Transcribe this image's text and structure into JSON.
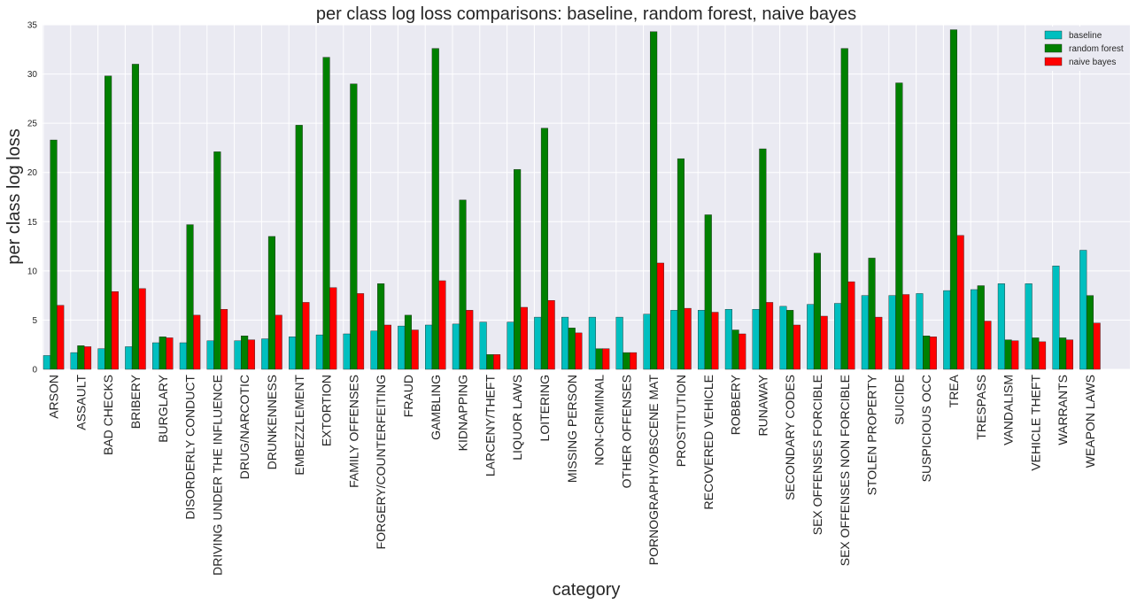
{
  "chart_data": {
    "type": "bar",
    "title": "per class log loss comparisons: baseline, random forest, naive bayes",
    "xlabel": "category",
    "ylabel": "per class log loss",
    "ylim": [
      0,
      35
    ],
    "yticks": [
      0,
      5,
      10,
      15,
      20,
      25,
      30,
      35
    ],
    "grid": true,
    "legend_position": "top-right",
    "categories": [
      "ARSON",
      "ASSAULT",
      "BAD CHECKS",
      "BRIBERY",
      "BURGLARY",
      "DISORDERLY CONDUCT",
      "DRIVING UNDER THE INFLUENCE",
      "DRUG/NARCOTIC",
      "DRUNKENNESS",
      "EMBEZZLEMENT",
      "EXTORTION",
      "FAMILY OFFENSES",
      "FORGERY/COUNTERFEITING",
      "FRAUD",
      "GAMBLING",
      "KIDNAPPING",
      "LARCENY/THEFT",
      "LIQUOR LAWS",
      "LOITERING",
      "MISSING PERSON",
      "NON-CRIMINAL",
      "OTHER OFFENSES",
      "PORNOGRAPHY/OBSCENE MAT",
      "PROSTITUTION",
      "RECOVERED VEHICLE",
      "ROBBERY",
      "RUNAWAY",
      "SECONDARY CODES",
      "SEX OFFENSES FORCIBLE",
      "SEX OFFENSES NON FORCIBLE",
      "STOLEN PROPERTY",
      "SUICIDE",
      "SUSPICIOUS OCC",
      "TREA",
      "TRESPASS",
      "VANDALISM",
      "VEHICLE THEFT",
      "WARRANTS",
      "WEAPON LAWS"
    ],
    "series": [
      {
        "name": "baseline",
        "color": "#00BFBF",
        "values": [
          1.4,
          1.7,
          2.1,
          2.3,
          2.7,
          2.7,
          2.9,
          2.9,
          3.1,
          3.3,
          3.5,
          3.6,
          3.9,
          4.4,
          4.5,
          4.6,
          4.8,
          4.8,
          5.3,
          5.3,
          5.3,
          5.3,
          5.6,
          6.0,
          6.0,
          6.1,
          6.1,
          6.4,
          6.6,
          6.7,
          7.5,
          7.5,
          7.7,
          8.0,
          8.1,
          8.7,
          8.7,
          10.5,
          12.1
        ]
      },
      {
        "name": "random forest",
        "color": "#008000",
        "values": [
          23.3,
          2.4,
          29.8,
          31.0,
          3.3,
          14.7,
          22.1,
          3.4,
          13.5,
          24.8,
          31.7,
          29.0,
          8.7,
          5.5,
          32.6,
          17.2,
          1.5,
          20.3,
          24.5,
          4.2,
          2.1,
          1.7,
          34.3,
          21.4,
          15.7,
          4.0,
          22.4,
          6.0,
          11.8,
          32.6,
          11.3,
          29.1,
          3.4,
          34.5,
          8.5,
          3.0,
          3.2,
          3.2,
          7.5
        ]
      },
      {
        "name": "naive bayes",
        "color": "#FF0000",
        "values": [
          6.5,
          2.3,
          7.9,
          8.2,
          3.2,
          5.5,
          6.1,
          3.0,
          5.5,
          6.8,
          8.3,
          7.7,
          4.5,
          4.0,
          9.0,
          6.0,
          1.5,
          6.3,
          7.0,
          3.7,
          2.1,
          1.7,
          10.8,
          6.2,
          5.8,
          3.6,
          6.8,
          4.5,
          5.4,
          8.9,
          5.3,
          7.6,
          3.3,
          13.6,
          4.9,
          2.9,
          2.8,
          3.0,
          4.7
        ]
      }
    ]
  }
}
